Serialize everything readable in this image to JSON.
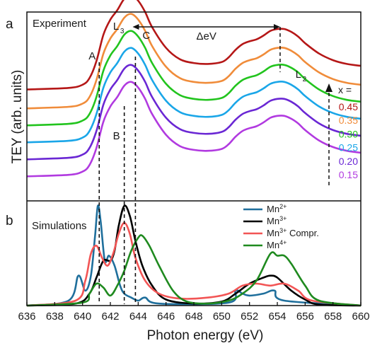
{
  "figure": {
    "ylabel": "TEY (arb. units)",
    "xlabel": "Photon energy (eV)",
    "x_ticks": [
      636,
      638,
      640,
      642,
      644,
      646,
      648,
      650,
      652,
      654,
      656,
      658,
      660
    ]
  },
  "chart_data": [
    {
      "type": "line",
      "panel_letter": "a",
      "title": "Experiment",
      "xlim": [
        636,
        660
      ],
      "ylim": [
        0,
        10
      ],
      "annotations": {
        "A": "A",
        "B": "B",
        "C": "C",
        "L3": "L",
        "L3_sub": "3",
        "L2": "L",
        "L2_sub": "2",
        "delta": "ΔeV",
        "arrow_span_x": [
          643.6,
          654.2
        ],
        "x_eq": "x ="
      },
      "dashed_lines_x": [
        641.2,
        643.0,
        643.8
      ],
      "legend_placement": "right",
      "series": [
        {
          "name": "0.45",
          "color": "#b51717",
          "offset": 5.9
        },
        {
          "name": "0.35",
          "color": "#f08c3a",
          "offset": 4.9
        },
        {
          "name": "0.30",
          "color": "#22c41e",
          "offset": 4.0
        },
        {
          "name": "0.25",
          "color": "#1aa6e8",
          "offset": 3.1
        },
        {
          "name": "0.20",
          "color": "#6a27d4",
          "offset": 2.2
        },
        {
          "name": "0.15",
          "color": "#b13ae0",
          "offset": 1.3
        }
      ],
      "x": [
        636,
        639,
        640,
        640.5,
        641,
        641.5,
        642,
        642.5,
        643,
        643.5,
        644,
        644.5,
        645,
        646,
        647,
        648,
        649,
        650,
        650.5,
        651,
        651.5,
        652,
        652.5,
        653,
        653.5,
        654,
        654.5,
        655,
        655.5,
        656,
        657,
        658,
        659,
        660
      ],
      "shape": [
        0,
        0.08,
        0.25,
        0.6,
        1.5,
        2.9,
        3.7,
        4.2,
        4.8,
        5.0,
        4.7,
        4.1,
        3.3,
        2.2,
        1.6,
        1.4,
        1.35,
        1.45,
        1.7,
        2.1,
        2.4,
        2.55,
        2.65,
        2.85,
        3.1,
        3.2,
        3.2,
        3.05,
        2.8,
        2.45,
        1.9,
        1.55,
        1.35,
        1.25
      ]
    },
    {
      "type": "line",
      "panel_letter": "b",
      "title": "Simulations",
      "xlim": [
        636,
        660
      ],
      "ylim": [
        0,
        1.05
      ],
      "legend_placement": "top-right",
      "series": [
        {
          "name": "Mn",
          "sup": "2+",
          "color": "#1f6f9c",
          "x": [
            636,
            639,
            639.7,
            640.2,
            640.6,
            640.9,
            641.1,
            641.3,
            641.6,
            641.9,
            642.3,
            642.7,
            643,
            643.5,
            644,
            644.5,
            645.5,
            650.5,
            651,
            651.5,
            652,
            653,
            653.8,
            654.5,
            660
          ],
          "values": [
            0,
            0.05,
            0.3,
            0.15,
            0.3,
            0.7,
            1.0,
            0.85,
            0.45,
            0.5,
            0.4,
            0.2,
            0.12,
            0.08,
            0.05,
            0.08,
            0.02,
            0.03,
            0.15,
            0.12,
            0.1,
            0.12,
            0.15,
            0.05,
            0
          ]
        },
        {
          "name": "Mn",
          "sup": "3+",
          "color": "#000000",
          "x": [
            636,
            639.5,
            640.5,
            641,
            641.5,
            642,
            642.3,
            642.6,
            643,
            643.4,
            643.8,
            644.3,
            645,
            646,
            648,
            650,
            651,
            652,
            653,
            653.5,
            654,
            655,
            656,
            657,
            660
          ],
          "values": [
            0,
            0.02,
            0.12,
            0.28,
            0.45,
            0.45,
            0.55,
            0.8,
            1.0,
            0.9,
            0.65,
            0.4,
            0.2,
            0.06,
            0.02,
            0.04,
            0.12,
            0.22,
            0.28,
            0.3,
            0.28,
            0.15,
            0.06,
            0.01,
            0
          ]
        },
        {
          "name": "Mn",
          "sup": "3+ Compr.",
          "color": "#f25555",
          "x": [
            636,
            639.5,
            640.2,
            640.6,
            641,
            641.4,
            641.8,
            642.2,
            642.6,
            643,
            643.4,
            643.8,
            644.5,
            645.5,
            647,
            649,
            650.5,
            651.5,
            652.5,
            653.5,
            654.5,
            655.5,
            656.5,
            660
          ],
          "values": [
            0,
            0.05,
            0.25,
            0.52,
            0.6,
            0.48,
            0.4,
            0.52,
            0.72,
            0.83,
            0.72,
            0.48,
            0.25,
            0.12,
            0.07,
            0.08,
            0.12,
            0.2,
            0.22,
            0.2,
            0.22,
            0.15,
            0.05,
            0
          ]
        },
        {
          "name": "Mn",
          "sup": "4+",
          "color": "#1f8a1f",
          "x": [
            636,
            640,
            640.5,
            641,
            641.5,
            642,
            642.5,
            643,
            643.5,
            644,
            644.3,
            644.8,
            645.5,
            646.5,
            647.5,
            649,
            650.5,
            651.5,
            652.5,
            653.5,
            654,
            654.5,
            655,
            656,
            657,
            660
          ],
          "values": [
            0,
            0.03,
            0.12,
            0.22,
            0.18,
            0.1,
            0.2,
            0.35,
            0.55,
            0.68,
            0.7,
            0.6,
            0.4,
            0.15,
            0.04,
            0.02,
            0.05,
            0.12,
            0.25,
            0.52,
            0.5,
            0.5,
            0.42,
            0.2,
            0.05,
            0
          ]
        }
      ]
    }
  ]
}
